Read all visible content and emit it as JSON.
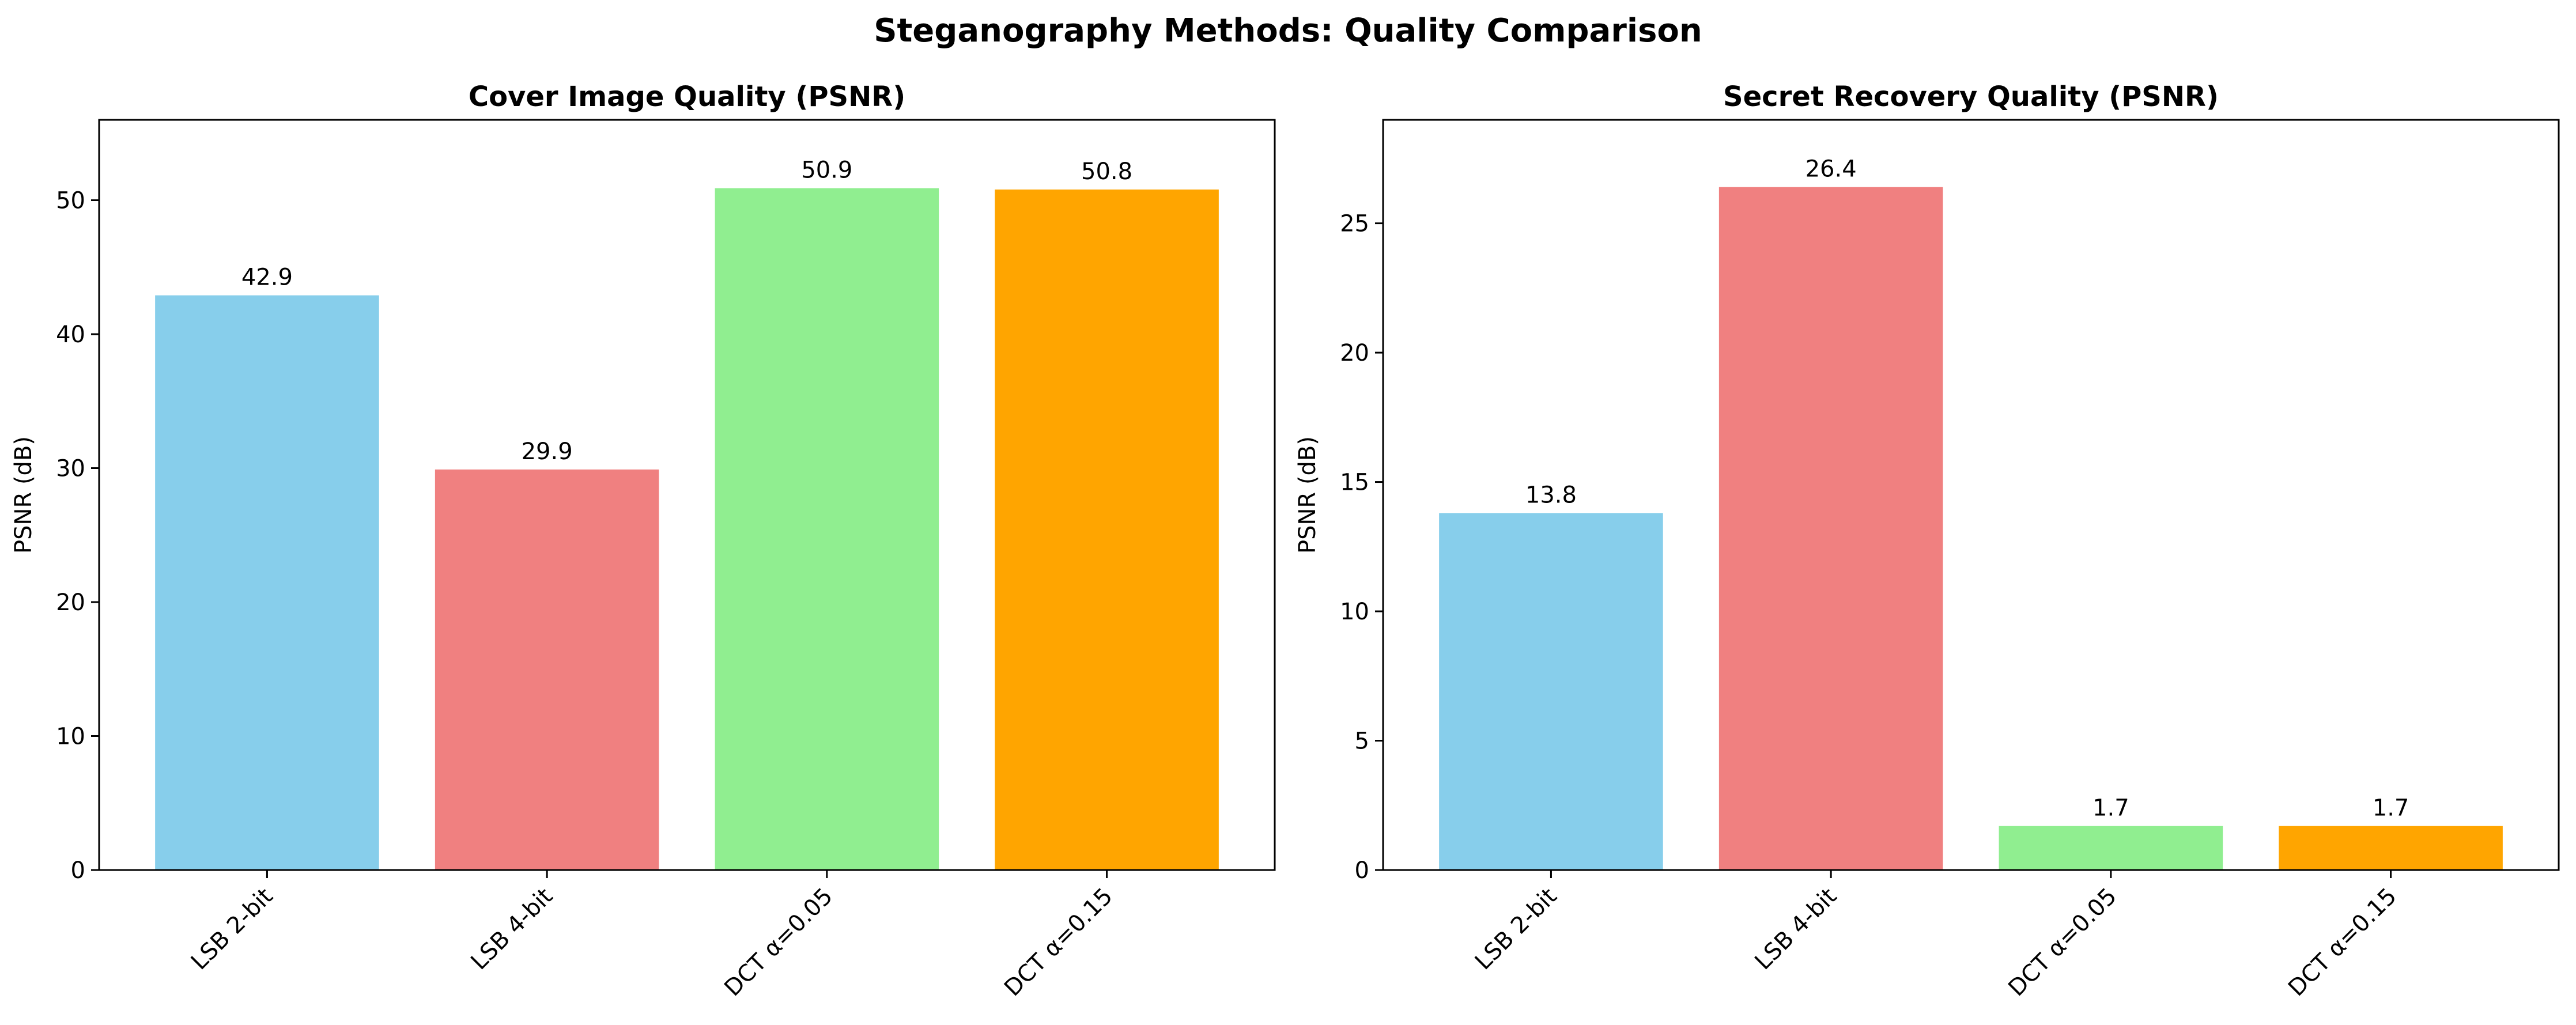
{
  "title": "Steganography Methods: Quality Comparison",
  "chart_data": [
    {
      "type": "bar",
      "title": "Cover Image Quality (PSNR)",
      "xlabel": "",
      "ylabel": "PSNR (dB)",
      "categories": [
        "LSB 2-bit",
        "LSB 4-bit",
        "DCT α=0.05",
        "DCT α=0.15"
      ],
      "values": [
        42.9,
        29.9,
        50.9,
        50.8
      ],
      "value_labels": [
        "42.9",
        "29.9",
        "50.9",
        "50.8"
      ],
      "colors": [
        "#87CEEB",
        "#F08080",
        "#90EE90",
        "#FFA500"
      ],
      "ylim": [
        0,
        56
      ],
      "yticks": [
        0,
        10,
        20,
        30,
        40,
        50
      ],
      "grid": false
    },
    {
      "type": "bar",
      "title": "Secret Recovery Quality (PSNR)",
      "xlabel": "",
      "ylabel": "PSNR (dB)",
      "categories": [
        "LSB 2-bit",
        "LSB 4-bit",
        "DCT α=0.05",
        "DCT α=0.15"
      ],
      "values": [
        13.8,
        26.4,
        1.7,
        1.7
      ],
      "value_labels": [
        "13.8",
        "26.4",
        "1.7",
        "1.7"
      ],
      "colors": [
        "#87CEEB",
        "#F08080",
        "#90EE90",
        "#FFA500"
      ],
      "ylim": [
        0,
        29
      ],
      "yticks": [
        0,
        5,
        10,
        15,
        20,
        25
      ],
      "grid": false
    }
  ]
}
